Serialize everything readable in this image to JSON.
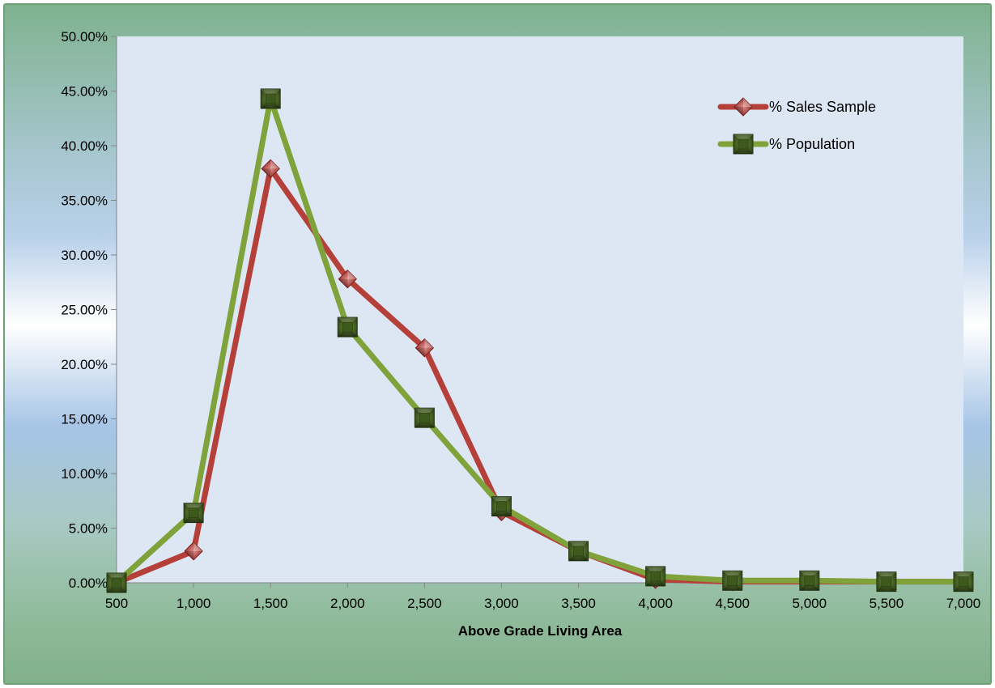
{
  "chart_data": {
    "type": "line",
    "title": "",
    "xlabel": "Above Grade Living Area",
    "ylabel": "",
    "categories": [
      "500",
      "1,000",
      "1,500",
      "2,000",
      "2,500",
      "3,000",
      "3,500",
      "4,000",
      "4,500",
      "5,000",
      "5,500",
      "7,000"
    ],
    "y_ticks": [
      "0.00%",
      "5.00%",
      "10.00%",
      "15.00%",
      "20.00%",
      "25.00%",
      "30.00%",
      "35.00%",
      "40.00%",
      "45.00%",
      "50.00%"
    ],
    "ylim": [
      0,
      50
    ],
    "y_step": 5,
    "grid": false,
    "legend_position": "top-right",
    "series": [
      {
        "name": "% Sales Sample",
        "color": "#b5403a",
        "marker": "diamond",
        "values": [
          0.0,
          2.9,
          37.9,
          27.8,
          21.5,
          6.5,
          2.9,
          0.3,
          0.1,
          0.1,
          0.1,
          0.1
        ]
      },
      {
        "name": "% Population",
        "color": "#7fa23b",
        "marker": "square",
        "values": [
          0.0,
          6.4,
          44.3,
          23.4,
          15.1,
          7.0,
          2.9,
          0.6,
          0.2,
          0.2,
          0.1,
          0.1
        ]
      }
    ]
  }
}
